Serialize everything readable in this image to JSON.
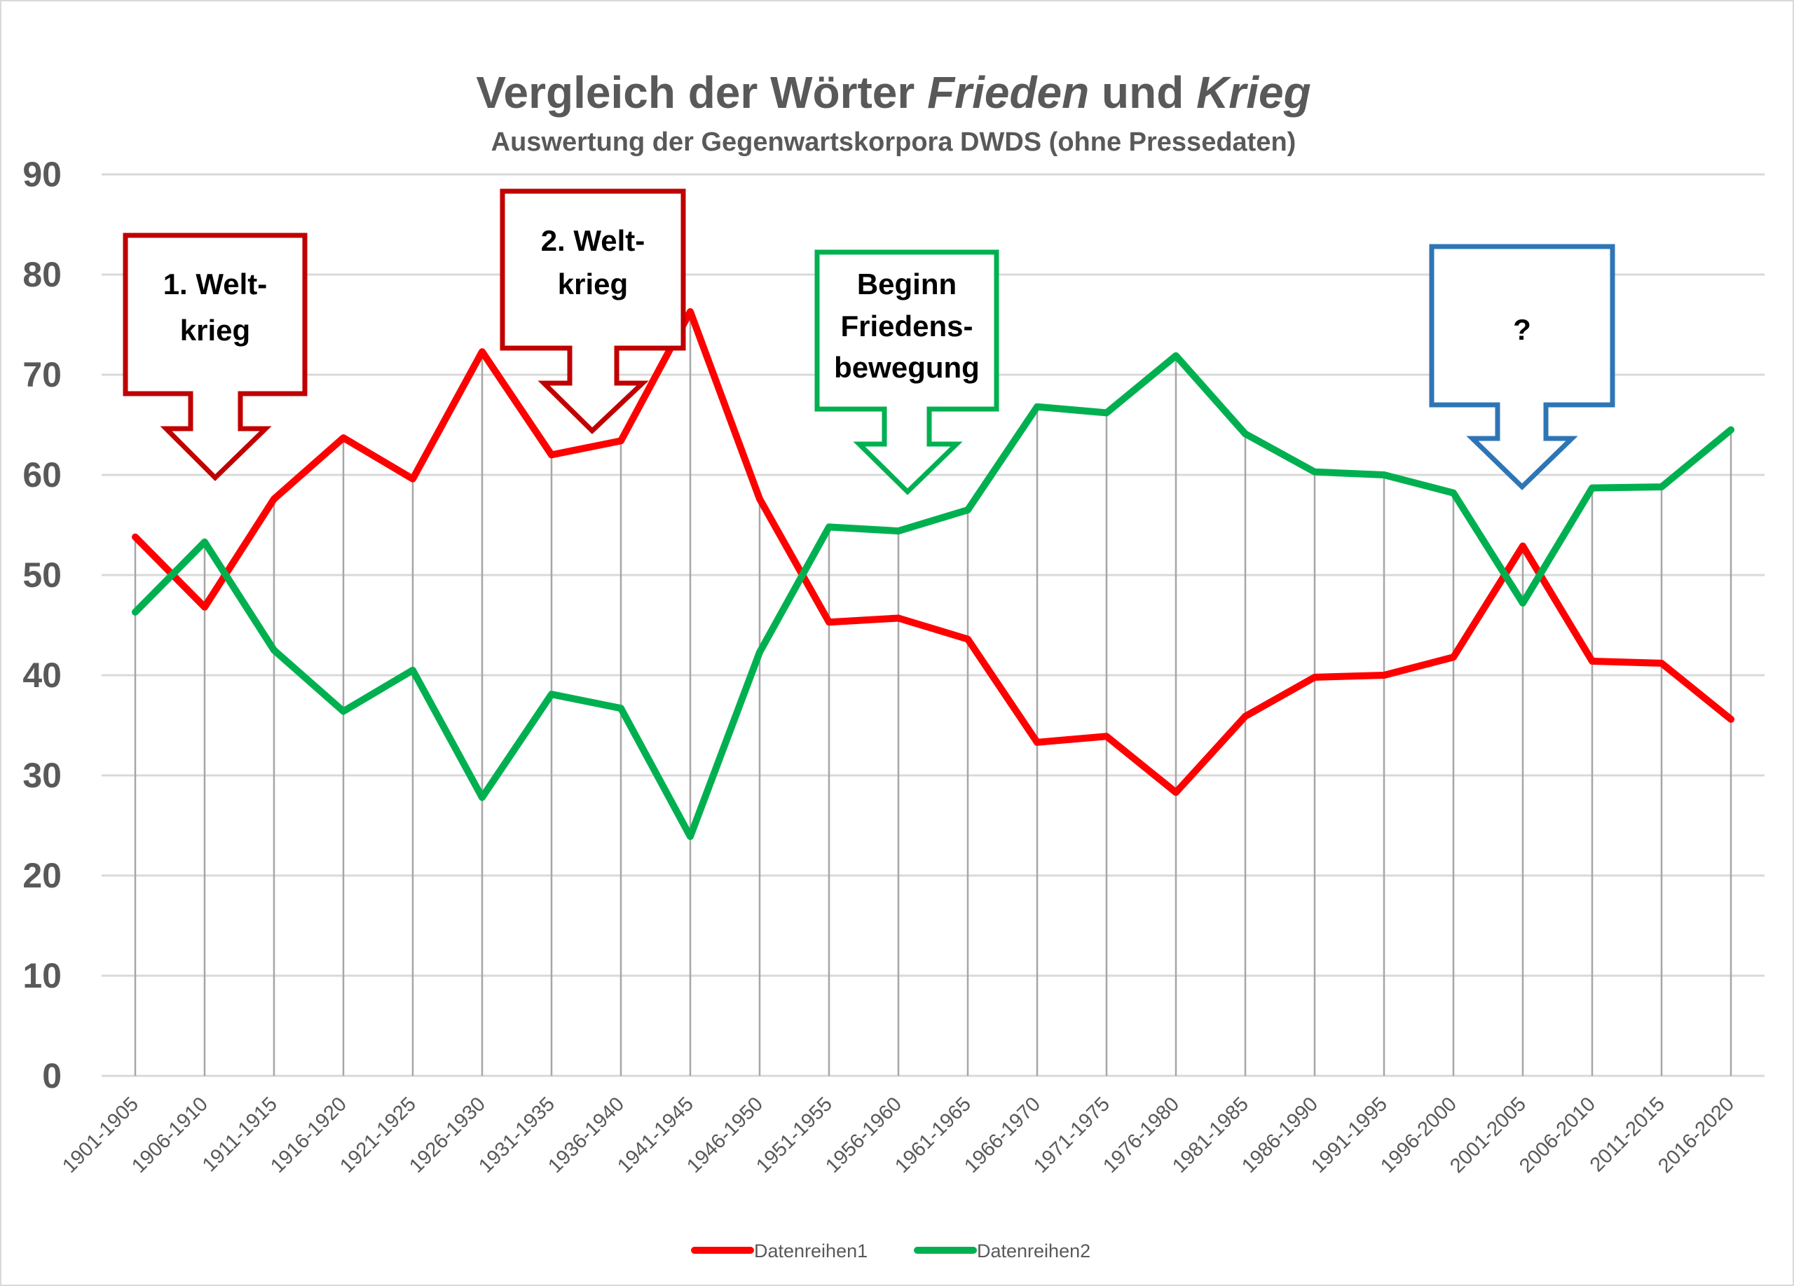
{
  "chart_data": {
    "type": "line",
    "title": {
      "parts": [
        {
          "text": "Vergleich der Wörter ",
          "italic": false
        },
        {
          "text": "Frieden",
          "italic": true
        },
        {
          "text": " und ",
          "italic": false
        },
        {
          "text": "Krieg",
          "italic": true
        }
      ],
      "full": "Vergleich der Wörter Frieden und Krieg"
    },
    "subtitle": "Auswertung der Gegenwartskorpora DWDS (ohne Pressedaten)",
    "xlabel": "",
    "ylabel": "",
    "ylim": [
      0,
      90
    ],
    "yticks": [
      0,
      10,
      20,
      30,
      40,
      50,
      60,
      70,
      80,
      90
    ],
    "grid": true,
    "drop_lines": true,
    "legend_position": "bottom",
    "categories": [
      "1901-1905",
      "1906-1910",
      "1911-1915",
      "1916-1920",
      "1921-1925",
      "1926-1930",
      "1931-1935",
      "1936-1940",
      "1941-1945",
      "1946-1950",
      "1951-1955",
      "1956-1960",
      "1961-1965",
      "1966-1970",
      "1971-1975",
      "1976-1980",
      "1981-1985",
      "1986-1990",
      "1991-1995",
      "1996-2000",
      "2001-2005",
      "2006-2010",
      "2011-2015",
      "2016-2020"
    ],
    "series": [
      {
        "name": "Datenreihen1",
        "color": "#FF0000",
        "values": [
          53.8,
          46.8,
          57.6,
          63.7,
          59.6,
          72.3,
          62.0,
          63.4,
          76.3,
          57.6,
          45.3,
          45.7,
          43.6,
          33.3,
          33.9,
          28.3,
          35.9,
          39.8,
          40.0,
          41.8,
          52.9,
          41.4,
          41.2,
          35.6
        ]
      },
      {
        "name": "Datenreihen2",
        "color": "#00B050",
        "values": [
          46.3,
          53.3,
          42.5,
          36.4,
          40.5,
          27.8,
          38.1,
          36.7,
          23.9,
          42.3,
          54.8,
          54.4,
          56.5,
          66.8,
          66.2,
          71.9,
          64.1,
          60.3,
          60.0,
          58.2,
          47.2,
          58.7,
          58.8,
          64.5
        ]
      }
    ],
    "annotations": [
      {
        "id": "ww1",
        "lines": [
          "1. Welt-",
          "krieg"
        ],
        "color": "#C00000",
        "points_to_category": "1906-1910"
      },
      {
        "id": "ww2",
        "lines": [
          "2. Welt-",
          "krieg"
        ],
        "color": "#C00000",
        "points_to_category": "1931-1940"
      },
      {
        "id": "peace",
        "lines": [
          "Beginn",
          "Friedens-",
          "bewegung"
        ],
        "color": "#00B050",
        "points_to_category": "1956-1960"
      },
      {
        "id": "question",
        "lines": [
          "?"
        ],
        "color": "#2E75B6",
        "points_to_category": "2001-2005"
      }
    ]
  }
}
